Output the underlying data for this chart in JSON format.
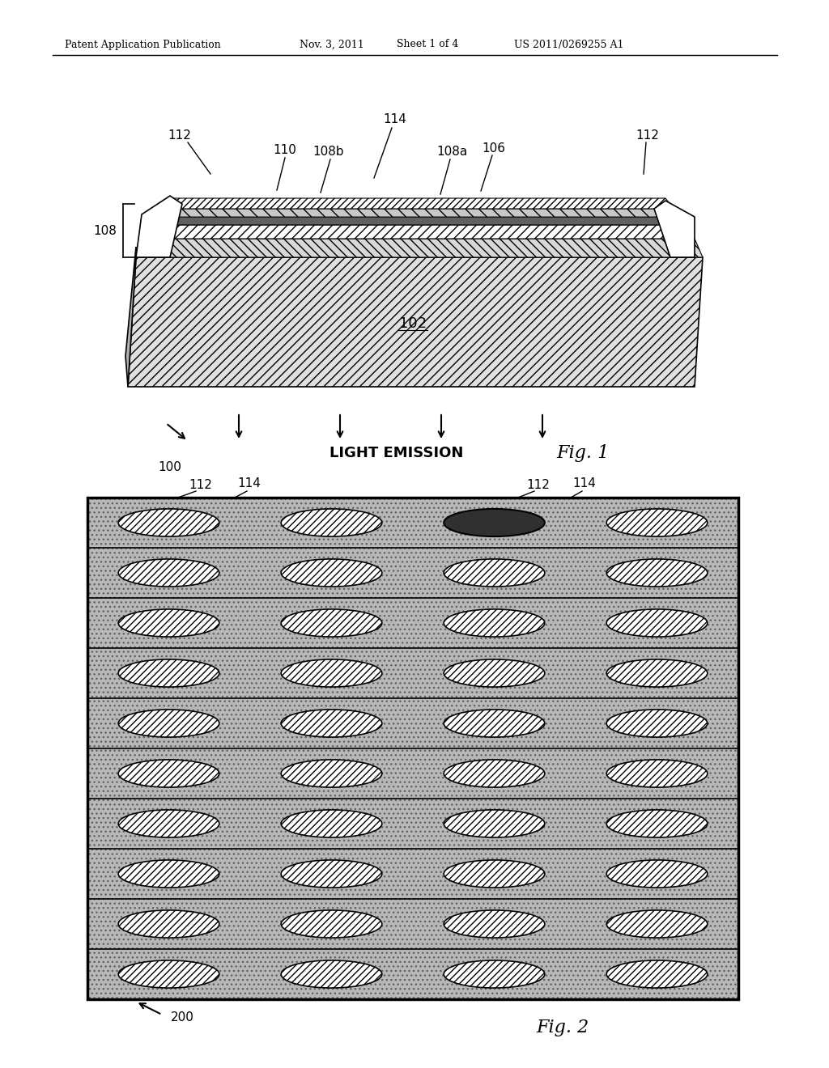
{
  "bg_color": "#ffffff",
  "header_text": "Patent Application Publication",
  "header_date": "Nov. 3, 2011",
  "header_sheet": "Sheet 1 of 4",
  "header_patent": "US 2011/0269255 A1",
  "fig1_label": "Fig. 1",
  "fig2_label": "Fig. 2",
  "fig1_ref_100": "100",
  "fig1_ref_102": "102",
  "fig1_ref_106": "106",
  "fig1_ref_108": "108",
  "fig1_ref_108a": "108a",
  "fig1_ref_108b": "108b",
  "fig1_ref_110": "110",
  "fig1_ref_112_left": "112",
  "fig1_ref_112_right": "112",
  "fig1_ref_114": "114",
  "fig1_light_emission": "LIGHT EMISSION",
  "fig2_ref_112_left": "112",
  "fig2_ref_114_left": "114",
  "fig2_ref_112_right": "112",
  "fig2_ref_114_right": "114",
  "fig2_ref_200": "200"
}
